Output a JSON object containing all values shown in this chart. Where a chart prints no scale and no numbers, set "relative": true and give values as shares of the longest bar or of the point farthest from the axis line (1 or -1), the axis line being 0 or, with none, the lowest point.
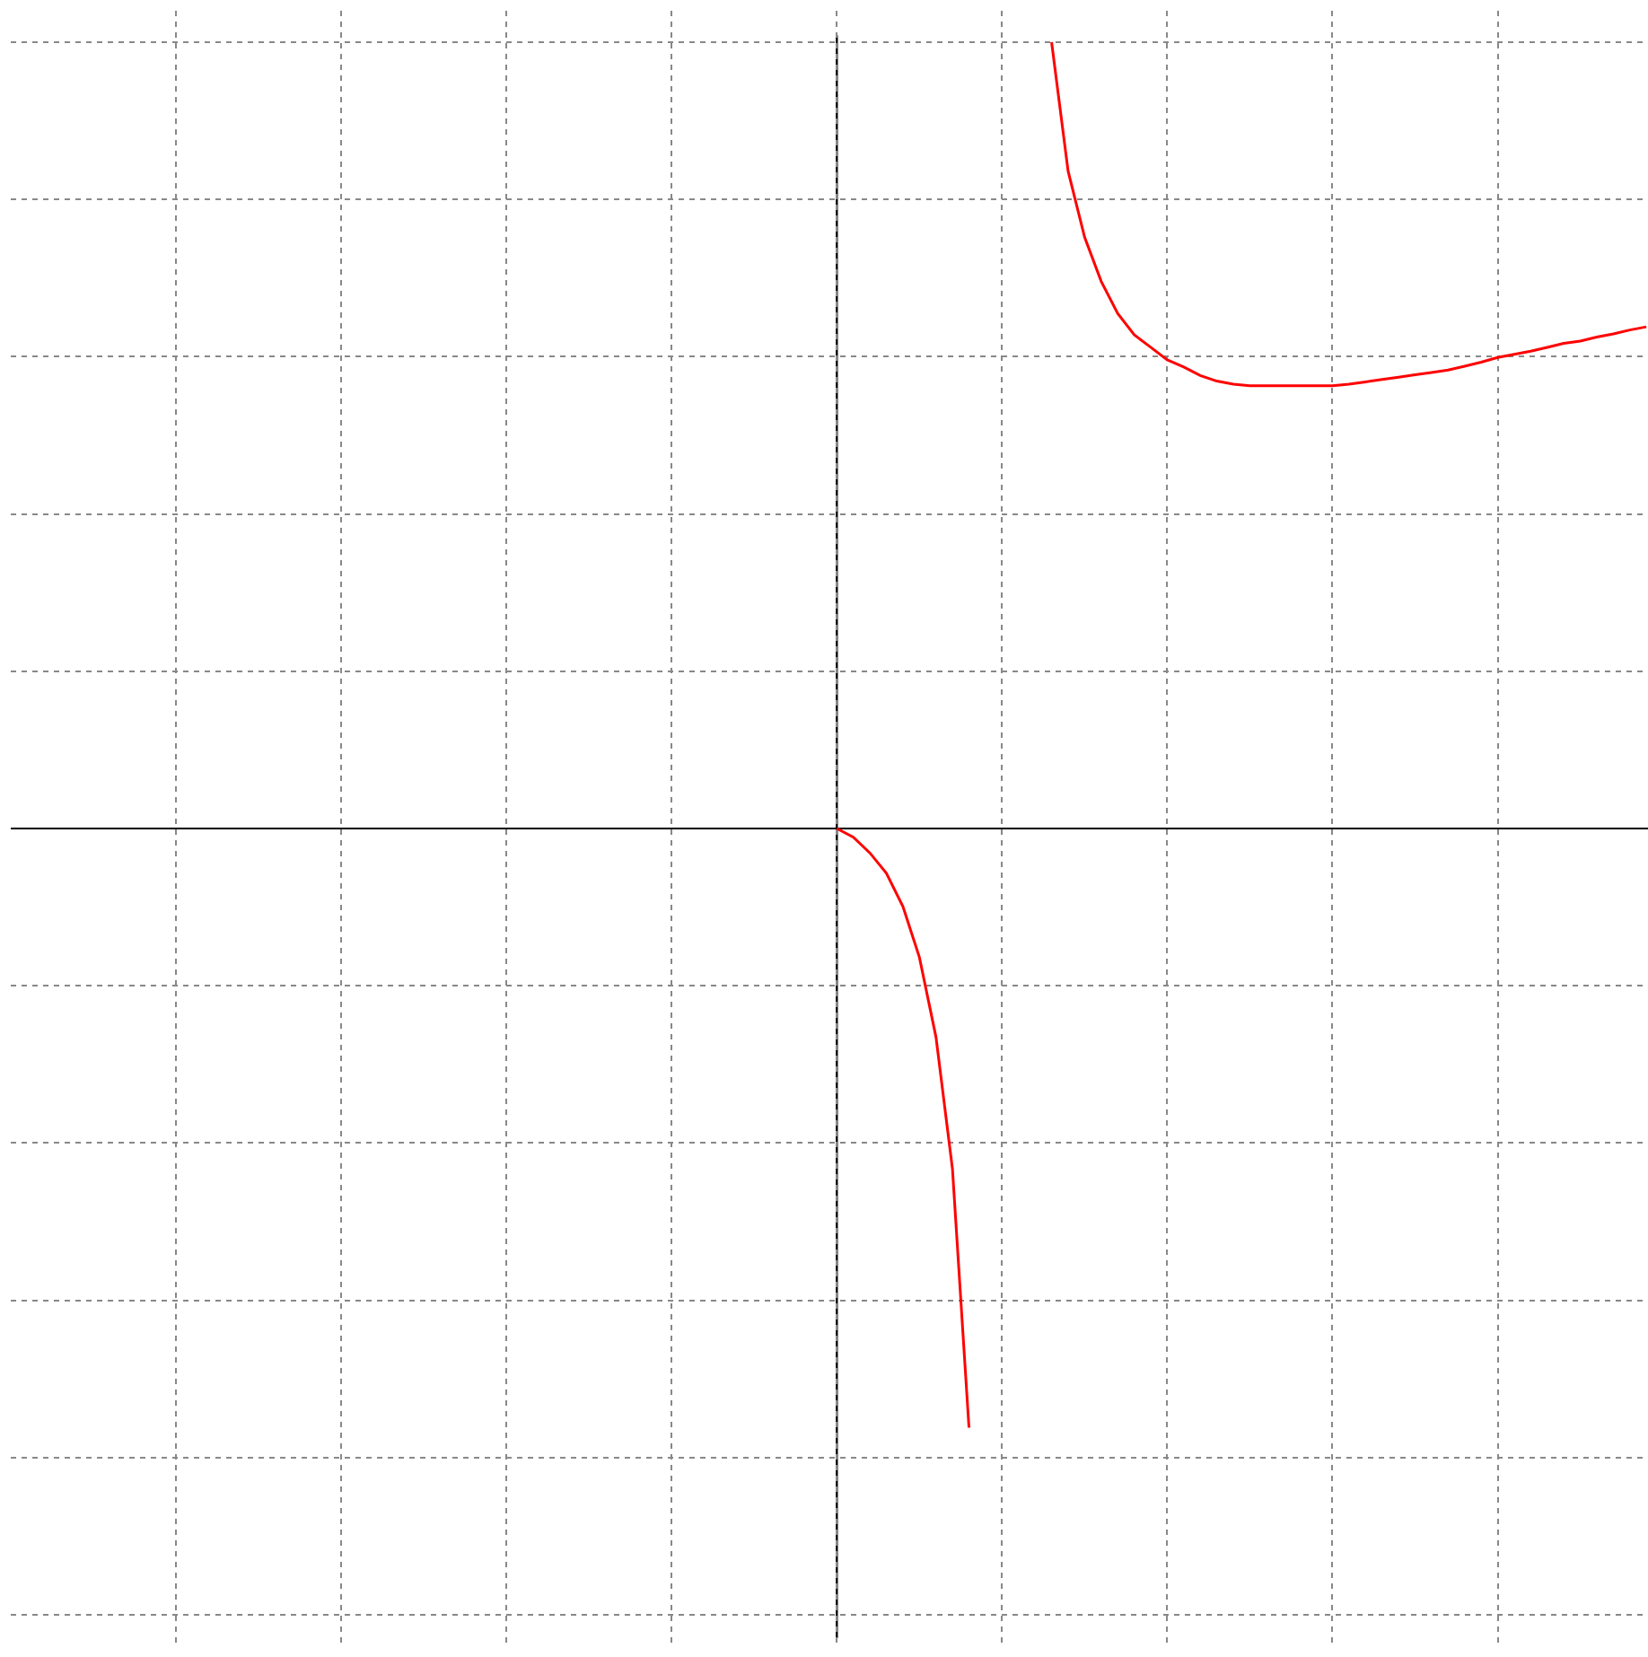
{
  "chart_data": {
    "type": "line",
    "relative": true,
    "grid": true,
    "marker": "none",
    "line_style": "solid",
    "categories": [
      null,
      null,
      null,
      null,
      null,
      null,
      null,
      null,
      null,
      null,
      null,
      null,
      null,
      null,
      null,
      null,
      null,
      null,
      null,
      null,
      null,
      null,
      null,
      null,
      null,
      null,
      null,
      null,
      null,
      null,
      null,
      null,
      null,
      null,
      null,
      null,
      null,
      null,
      null,
      null,
      null,
      null,
      null,
      null,
      null,
      null,
      null,
      null,
      null,
      null,
      null,
      null,
      null,
      null,
      null,
      null,
      null,
      null,
      null,
      null,
      null,
      null,
      null,
      null,
      null,
      null,
      null,
      null,
      null,
      null,
      null,
      null,
      null,
      null,
      null,
      null,
      null,
      null,
      null,
      null,
      null,
      null,
      null,
      null,
      null,
      null,
      null,
      null,
      null,
      null,
      null,
      null,
      null,
      null,
      null,
      null,
      null,
      null,
      null,
      null
    ],
    "series": [
      {
        "color": "#ff0000",
        "values": [
          null,
          null,
          null,
          null,
          null,
          null,
          null,
          null,
          null,
          null,
          null,
          null,
          null,
          null,
          null,
          null,
          null,
          null,
          null,
          null,
          null,
          null,
          null,
          null,
          null,
          null,
          null,
          null,
          null,
          null,
          null,
          null,
          null,
          null,
          null,
          null,
          null,
          null,
          null,
          null,
          null,
          null,
          null,
          null,
          null,
          null,
          null,
          null,
          null,
          null,
          0,
          -0.011,
          -0.031,
          -0.057,
          -0.099,
          -0.164,
          -0.265,
          -0.433,
          -0.762,
          null,
          null,
          null,
          null,
          null,
          null,
          null,
          null,
          null,
          null,
          null,
          null,
          null,
          null,
          null,
          null,
          null,
          null,
          null,
          null,
          null,
          null,
          null,
          null,
          null,
          null,
          null,
          null,
          null,
          null,
          null,
          null,
          null,
          null,
          null,
          null,
          null,
          null,
          null,
          null,
          null
        ]
      },
      {
        "color": "#ff0000",
        "values": [
          null,
          null,
          null,
          null,
          null,
          null,
          null,
          null,
          null,
          null,
          null,
          null,
          null,
          null,
          null,
          null,
          null,
          null,
          null,
          null,
          null,
          null,
          null,
          null,
          null,
          null,
          null,
          null,
          null,
          null,
          null,
          null,
          null,
          null,
          null,
          null,
          null,
          null,
          null,
          null,
          null,
          null,
          null,
          null,
          null,
          null,
          null,
          null,
          null,
          null,
          null,
          null,
          null,
          null,
          null,
          null,
          null,
          null,
          null,
          null,
          null,
          null,
          null,
          1,
          0.836,
          0.752,
          0.696,
          0.655,
          0.628,
          0.612,
          0.596,
          0.587,
          0.576,
          0.569,
          0.565,
          0.563,
          0.563,
          0.563,
          0.563,
          0.563,
          0.563,
          0.565,
          0.568,
          0.571,
          0.574,
          0.577,
          0.58,
          0.583,
          0.588,
          0.593,
          0.599,
          0.603,
          0.607,
          0.612,
          0.617,
          0.62,
          0.625,
          0.629,
          0.634,
          0.638
        ]
      }
    ]
  }
}
